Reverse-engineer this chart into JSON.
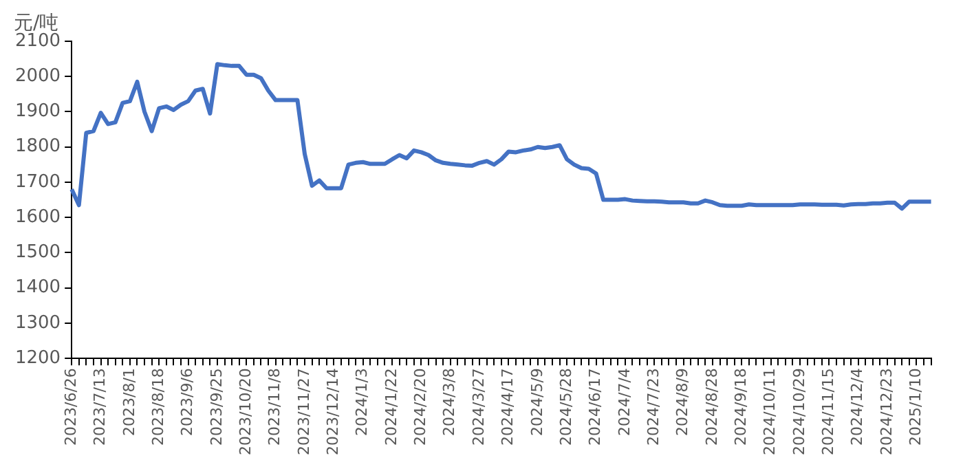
{
  "chart_data": {
    "type": "line",
    "ylabel": "元/吨",
    "categories": [
      "2023/6/26",
      null,
      null,
      null,
      "2023/7/13",
      null,
      null,
      null,
      "2023/8/1",
      null,
      null,
      null,
      "2023/8/18",
      null,
      null,
      null,
      "2023/9/6",
      null,
      null,
      null,
      "2023/9/25",
      null,
      null,
      null,
      "2023/10/20",
      null,
      null,
      null,
      "2023/11/8",
      null,
      null,
      null,
      "2023/11/27",
      null,
      null,
      null,
      "2023/12/14",
      null,
      null,
      null,
      "2024/1/3",
      null,
      null,
      null,
      "2024/1/22",
      null,
      null,
      null,
      "2024/2/20",
      null,
      null,
      null,
      "2024/3/8",
      null,
      null,
      null,
      "2024/3/27",
      null,
      null,
      null,
      "2024/4/17",
      null,
      null,
      null,
      "2024/5/9",
      null,
      null,
      null,
      "2024/5/28",
      null,
      null,
      null,
      "2024/6/17",
      null,
      null,
      null,
      "2024/7/4",
      null,
      null,
      null,
      "2024/7/23",
      null,
      null,
      null,
      "2024/8/9",
      null,
      null,
      null,
      "2024/8/28",
      null,
      null,
      null,
      "2024/9/18",
      null,
      null,
      null,
      "2024/10/11",
      null,
      null,
      null,
      "2024/10/29",
      null,
      null,
      null,
      "2024/11/15",
      null,
      null,
      null,
      "2024/12/4",
      null,
      null,
      null,
      "2024/12/23",
      null,
      null,
      null,
      "2025/1/10",
      null,
      null
    ],
    "series": [
      {
        "color": "#4472c4",
        "values": [
          1680,
          1635,
          1840,
          1845,
          1897,
          1865,
          1870,
          1925,
          1930,
          1985,
          1900,
          1845,
          1910,
          1915,
          1905,
          1920,
          1930,
          1960,
          1965,
          1895,
          2035,
          2032,
          2030,
          2030,
          2005,
          2005,
          1995,
          1960,
          1933,
          1933,
          1933,
          1933,
          1780,
          1690,
          1705,
          1683,
          1683,
          1683,
          1750,
          1755,
          1757,
          1752,
          1752,
          1752,
          1765,
          1777,
          1768,
          1790,
          1785,
          1777,
          1762,
          1755,
          1752,
          1750,
          1748,
          1747,
          1755,
          1760,
          1750,
          1765,
          1787,
          1785,
          1790,
          1793,
          1800,
          1797,
          1800,
          1805,
          1765,
          1750,
          1740,
          1738,
          1725,
          1650,
          1650,
          1650,
          1652,
          1648,
          1647,
          1646,
          1646,
          1645,
          1643,
          1643,
          1643,
          1640,
          1640,
          1648,
          1643,
          1635,
          1633,
          1633,
          1633,
          1637,
          1635,
          1635,
          1635,
          1635,
          1635,
          1635,
          1637,
          1637,
          1637,
          1636,
          1636,
          1636,
          1634,
          1637,
          1638,
          1638,
          1640,
          1640,
          1642,
          1642,
          1625,
          1645,
          1645,
          1645,
          1645
        ]
      }
    ],
    "ylim": [
      1200,
      2100
    ],
    "yticks": [
      1200,
      1300,
      1400,
      1500,
      1600,
      1700,
      1800,
      1900,
      2000,
      2100
    ],
    "grid": false,
    "legend": false,
    "marker": "none",
    "line_style": "solid"
  }
}
